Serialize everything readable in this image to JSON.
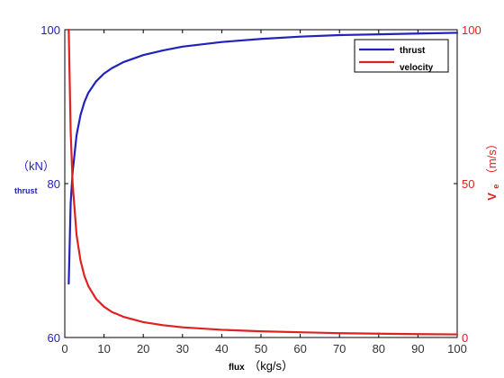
{
  "chart_data": {
    "type": "line",
    "title": "",
    "xlabel": {
      "symbol": "flux",
      "unit": "（kg/s）"
    },
    "ylabel_left": {
      "symbol": "thrust",
      "unit": "（kN）"
    },
    "ylabel_right": {
      "symbol": "V",
      "subscript": "e",
      "unit": "（m/s）"
    },
    "xlim": [
      0,
      100
    ],
    "ylim_left": [
      60,
      100
    ],
    "ylim_right": [
      0,
      100
    ],
    "x_ticks": [
      "0",
      "10",
      "20",
      "30",
      "40",
      "50",
      "60",
      "70",
      "80",
      "90",
      "100"
    ],
    "y_left_ticks": [
      "60",
      "80",
      "100"
    ],
    "y_right_ticks": [
      "0",
      "50",
      "100"
    ],
    "grid": false,
    "legend_position": "top-right",
    "series": [
      {
        "name": "thrust",
        "axis": "left",
        "color": "#2222bb",
        "x": [
          1,
          1.5,
          2,
          3,
          4,
          5,
          6,
          8,
          10,
          12,
          15,
          20,
          25,
          30,
          40,
          50,
          60,
          70,
          80,
          90,
          100
        ],
        "y": [
          67.0,
          77.5,
          81.5,
          86.3,
          88.9,
          90.6,
          91.8,
          93.3,
          94.3,
          95.0,
          95.8,
          96.7,
          97.3,
          97.8,
          98.4,
          98.8,
          99.1,
          99.3,
          99.4,
          99.5,
          99.6
        ]
      },
      {
        "name": "velocity",
        "axis": "right",
        "color": "#dd2222",
        "x": [
          1,
          1.5,
          2,
          3,
          4,
          5,
          6,
          8,
          10,
          12,
          15,
          20,
          25,
          30,
          40,
          50,
          60,
          70,
          80,
          90,
          100
        ],
        "y": [
          100,
          66.7,
          50.0,
          33.3,
          25.0,
          20.0,
          16.7,
          12.5,
          10.0,
          8.3,
          6.7,
          5.0,
          4.0,
          3.3,
          2.5,
          2.0,
          1.7,
          1.4,
          1.25,
          1.1,
          1.0
        ]
      }
    ]
  },
  "colors": {
    "left_axis": "#2222bb",
    "right_axis": "#dd2222",
    "frame": "#000000"
  }
}
